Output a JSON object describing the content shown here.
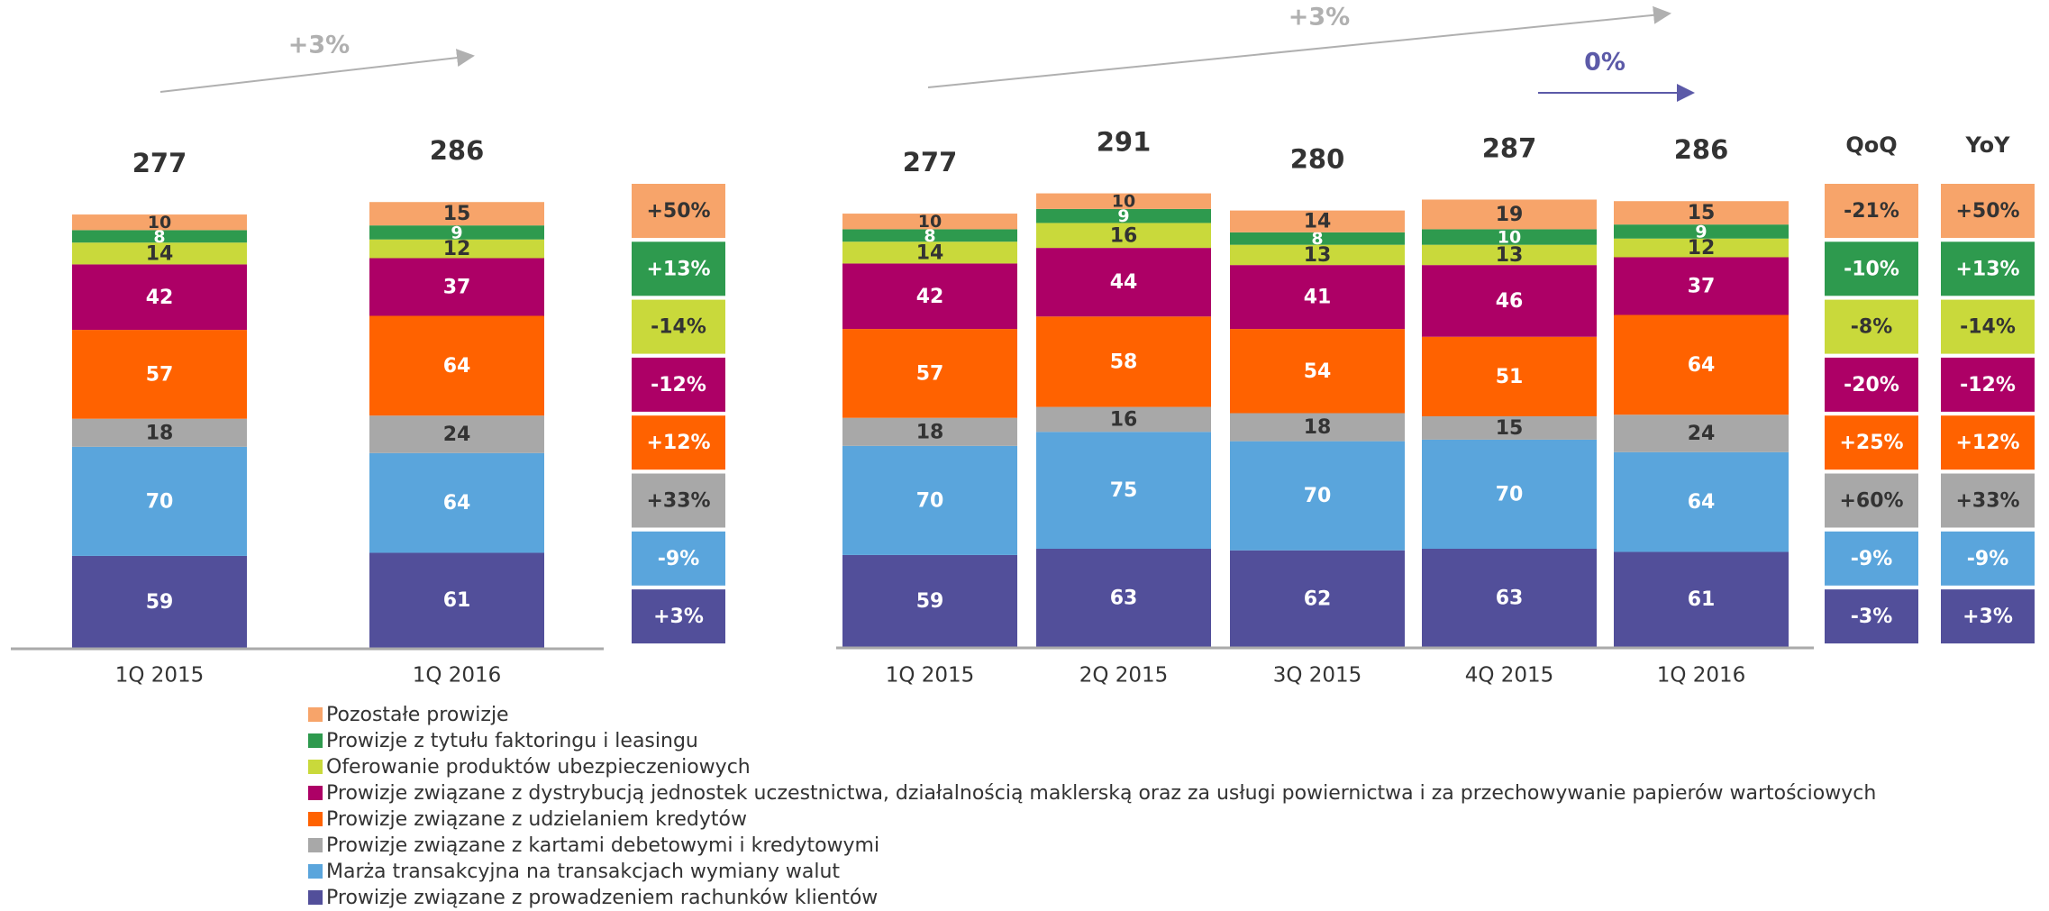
{
  "chart_data": [
    {
      "type": "stacked_bar",
      "categories": [
        "1Q 2015",
        "1Q 2016"
      ],
      "totals": [
        277,
        286
      ],
      "series": [
        {
          "color": "#f7a46a",
          "values": [
            10,
            15
          ]
        },
        {
          "color": "#2e9a4e",
          "values": [
            8,
            9
          ]
        },
        {
          "color": "#c9d93b",
          "values": [
            14,
            12
          ]
        },
        {
          "color": "#ad0066",
          "values": [
            42,
            37
          ]
        },
        {
          "color": "#ff6200",
          "values": [
            57,
            64
          ]
        },
        {
          "color": "#a8a8a8",
          "values": [
            18,
            24
          ]
        },
        {
          "color": "#5aa5dc",
          "values": [
            70,
            64
          ]
        },
        {
          "color": "#524f9a",
          "values": [
            59,
            61
          ]
        }
      ],
      "changes": {
        "values": [
          50,
          13,
          -14,
          -12,
          12,
          33,
          -9,
          3
        ],
        "value_labels": [
          "+50%",
          "+13%",
          "-14%",
          "-12%",
          "+12%",
          "+33%",
          "-9%",
          "+3%"
        ]
      },
      "annotations": [
        {
          "text": "+3%",
          "color": "#b0b0b0"
        }
      ]
    },
    {
      "type": "stacked_bar",
      "categories": [
        "1Q 2015",
        "2Q 2015",
        "3Q 2015",
        "4Q 2015",
        "1Q 2016"
      ],
      "totals": [
        277,
        291,
        280,
        287,
        286
      ],
      "series": [
        {
          "name": "Pozostałe prowizje",
          "color": "#f7a46a",
          "values": [
            10,
            10,
            14,
            19,
            15
          ]
        },
        {
          "name": "Prowizje z tytułu faktoringu i leasingu",
          "color": "#2e9a4e",
          "values": [
            8,
            9,
            8,
            10,
            9
          ]
        },
        {
          "name": "Oferowanie produktów ubezpieczeniowych",
          "color": "#c9d93b",
          "values": [
            14,
            16,
            13,
            13,
            12
          ]
        },
        {
          "name": "Prowizje związane z dystrybucją jednostek uczestnictwa, działalnością maklerską oraz za usługi powiernictwa i za przechowywanie papierów wartościowych",
          "color": "#ad0066",
          "values": [
            42,
            44,
            41,
            46,
            37
          ]
        },
        {
          "name": "Prowizje związane z udzielaniem kredytów",
          "color": "#ff6200",
          "values": [
            57,
            58,
            54,
            51,
            64
          ]
        },
        {
          "name": "Prowizje związane z kartami debetowymi i kredytowymi",
          "color": "#a8a8a8",
          "values": [
            18,
            16,
            18,
            15,
            24
          ]
        },
        {
          "name": "Marża transakcyjna na transakcjach wymiany walut",
          "color": "#5aa5dc",
          "values": [
            70,
            75,
            70,
            70,
            64
          ]
        },
        {
          "name": "Prowizje związane z prowadzeniem rachunków klientów",
          "color": "#524f9a",
          "values": [
            59,
            63,
            62,
            63,
            61
          ]
        }
      ],
      "qoq": {
        "name": "QoQ",
        "values": [
          -21,
          -10,
          -8,
          -20,
          25,
          60,
          -9,
          -3
        ],
        "value_labels": [
          "-21%",
          "-10%",
          "-8%",
          "-20%",
          "+25%",
          "+60%",
          "-9%",
          "-3%"
        ]
      },
      "yoy": {
        "name": "YoY",
        "values": [
          50,
          13,
          -14,
          -12,
          12,
          33,
          -9,
          3
        ],
        "value_labels": [
          "+50%",
          "+13%",
          "-14%",
          "-12%",
          "+12%",
          "+33%",
          "-9%",
          "+3%"
        ]
      },
      "annotations": [
        {
          "text": "+3%",
          "color": "#b0b0b0"
        },
        {
          "text": "0%",
          "color": "#5c5aa8"
        }
      ]
    }
  ]
}
